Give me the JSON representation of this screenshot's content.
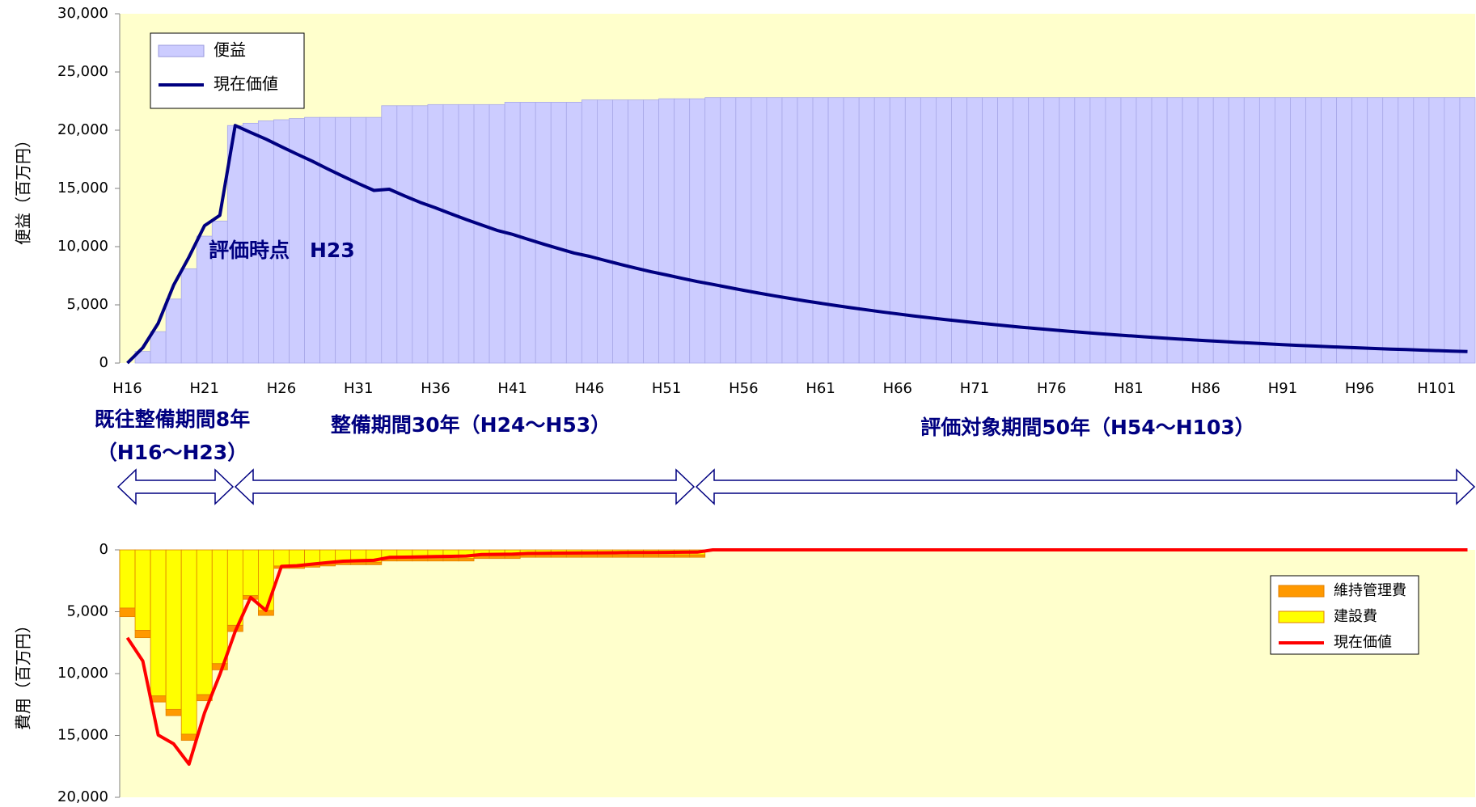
{
  "chart_data": [
    {
      "type": "bar",
      "ylabel": "便益（百万円）",
      "legend": "upper left",
      "categories": [
        "H16",
        null,
        null,
        null,
        null,
        "H21",
        null,
        null,
        null,
        null,
        "H26",
        null,
        null,
        null,
        null,
        "H31",
        null,
        null,
        null,
        null,
        "H36",
        null,
        null,
        null,
        null,
        "H41",
        null,
        null,
        null,
        null,
        "H46",
        null,
        null,
        null,
        null,
        "H51",
        null,
        null,
        null,
        null,
        "H56",
        null,
        null,
        null,
        null,
        "H61",
        null,
        null,
        null,
        null,
        "H66",
        null,
        null,
        null,
        null,
        "H71",
        null,
        null,
        null,
        null,
        "H76",
        null,
        null,
        null,
        null,
        "H81",
        null,
        null,
        null,
        null,
        "H86",
        null,
        null,
        null,
        null,
        "H91",
        null,
        null,
        null,
        null,
        "H96",
        null,
        null,
        null,
        null,
        "H101",
        null,
        null
      ],
      "series": [
        {
          "name": "便益",
          "type": "bar",
          "color": "#ccccff",
          "values": [
            0,
            1000,
            2700,
            5500,
            8100,
            10900,
            12200,
            20400,
            20600,
            20800,
            20900,
            21000,
            21100,
            21100,
            21100,
            21100,
            21100,
            22100,
            22100,
            22100,
            22200,
            22200,
            22200,
            22200,
            22200,
            22400,
            22400,
            22400,
            22400,
            22400,
            22600,
            22600,
            22600,
            22600,
            22600,
            22700,
            22700,
            22700,
            22800,
            22800,
            22800,
            22800,
            22800,
            22800,
            22800,
            22800,
            22800,
            22800,
            22800,
            22800,
            22800,
            22800,
            22800,
            22800,
            22800,
            22800,
            22800,
            22800,
            22800,
            22800,
            22800,
            22800,
            22800,
            22800,
            22800,
            22800,
            22800,
            22800,
            22800,
            22800,
            22800,
            22800,
            22800,
            22800,
            22800,
            22800,
            22800,
            22800,
            22800,
            22800,
            22800,
            22800,
            22800,
            22800,
            22800,
            22800,
            22800,
            22800
          ]
        },
        {
          "name": "現在価値",
          "type": "line",
          "color": "#000080",
          "values": [
            0,
            1316,
            3416,
            6692,
            9112,
            11789,
            12688,
            20400,
            19808,
            19231,
            18580,
            17950,
            17342,
            16676,
            16035,
            15417,
            14825,
            14930,
            14355,
            13804,
            13333,
            12820,
            12327,
            11853,
            11397,
            11057,
            10632,
            10223,
            9830,
            9452,
            9170,
            8817,
            8478,
            8151,
            7838,
            7570,
            7279,
            6999,
            6759,
            6499,
            6249,
            6009,
            5778,
            5556,
            5342,
            5137,
            4939,
            4749,
            4566,
            4391,
            4222,
            4059,
            3903,
            3753,
            3609,
            3470,
            3337,
            3208,
            3085,
            2966,
            2852,
            2742,
            2637,
            2536,
            2438,
            2344,
            2254,
            2167,
            2084,
            2004,
            1927,
            1853,
            1781,
            1713,
            1647,
            1584,
            1523,
            1464,
            1408,
            1354,
            1302,
            1252,
            1203,
            1157,
            1113,
            1070,
            1029,
            989
          ]
        }
      ],
      "ylim": [
        0,
        30000
      ],
      "yticks": [
        0,
        {
          "value": 5000,
          "label": "5,000"
        },
        {
          "value": 10000,
          "label": "10,000"
        },
        {
          "value": 15000,
          "label": "15,000"
        },
        {
          "value": 20000,
          "label": "20,000"
        },
        {
          "value": 25000,
          "label": "25,000"
        },
        {
          "value": 30000,
          "label": "30,000"
        }
      ],
      "annotations": [
        "評価時点　H23",
        "既往整備期間8年",
        "（H16～H23）",
        "整備期間30年（H24～H53）",
        "評価対象期間50年（H54～H103）"
      ]
    },
    {
      "type": "bar",
      "stacked": true,
      "y_inverted": true,
      "ylabel": "費用（百万円）",
      "legend": "right",
      "series": [
        {
          "name": "維持管理費",
          "type": "bar",
          "color": "#ff9900",
          "values": [
            700,
            600,
            500,
            500,
            500,
            500,
            500,
            500,
            300,
            400,
            200,
            200,
            200,
            200,
            200,
            200,
            200,
            200,
            200,
            200,
            200,
            200,
            200,
            200,
            200,
            200,
            200,
            200,
            200,
            200,
            200,
            200,
            200,
            200,
            200,
            200,
            200,
            200,
            0,
            0,
            0,
            0,
            0,
            0,
            0,
            0,
            0,
            0,
            0,
            0,
            0,
            0,
            0,
            0,
            0,
            0,
            0,
            0,
            0,
            0,
            0,
            0,
            0,
            0,
            0,
            0,
            0,
            0,
            0,
            0,
            0,
            0,
            0,
            0,
            0,
            0,
            0,
            0,
            0,
            0,
            0,
            0,
            0,
            0,
            0,
            0,
            0,
            0
          ]
        },
        {
          "name": "建設費",
          "type": "bar",
          "color": "#ffff00",
          "values": [
            4700,
            6500,
            11800,
            12900,
            14900,
            11700,
            9200,
            6100,
            3700,
            4900,
            1300,
            1300,
            1200,
            1100,
            1000,
            1000,
            1000,
            700,
            700,
            700,
            700,
            700,
            700,
            500,
            500,
            500,
            400,
            400,
            400,
            400,
            400,
            400,
            400,
            400,
            400,
            400,
            400,
            400,
            0,
            0,
            0,
            0,
            0,
            0,
            0,
            0,
            0,
            0,
            0,
            0,
            0,
            0,
            0,
            0,
            0,
            0,
            0,
            0,
            0,
            0,
            0,
            0,
            0,
            0,
            0,
            0,
            0,
            0,
            0,
            0,
            0,
            0,
            0,
            0,
            0,
            0,
            0,
            0,
            0,
            0,
            0,
            0,
            0,
            0,
            0,
            0,
            0,
            0
          ]
        },
        {
          "name": "現在価値",
          "type": "line",
          "color": "#ff0000",
          "values": [
            7106,
            8984,
            14965,
            15677,
            17323,
            13196,
            10088,
            6600,
            3846,
            4900,
            1333,
            1282,
            1151,
            1027,
            912,
            877,
            843,
            608,
            585,
            562,
            541,
            520,
            500,
            374,
            359,
            346,
            285,
            274,
            263,
            253,
            243,
            234,
            225,
            216,
            208,
            200,
            192,
            185,
            0,
            0,
            0,
            0,
            0,
            0,
            0,
            0,
            0,
            0,
            0,
            0,
            0,
            0,
            0,
            0,
            0,
            0,
            0,
            0,
            0,
            0,
            0,
            0,
            0,
            0,
            0,
            0,
            0,
            0,
            0,
            0,
            0,
            0,
            0,
            0,
            0,
            0,
            0,
            0,
            0,
            0,
            0,
            0,
            0,
            0,
            0,
            0,
            0,
            0
          ]
        }
      ],
      "ylim": [
        0,
        20000
      ],
      "yticks": [
        0,
        {
          "value": 5000,
          "label": "5,000"
        },
        {
          "value": 10000,
          "label": "10,000"
        },
        {
          "value": 15000,
          "label": "15,000"
        },
        {
          "value": 20000,
          "label": "20,000"
        }
      ]
    }
  ]
}
